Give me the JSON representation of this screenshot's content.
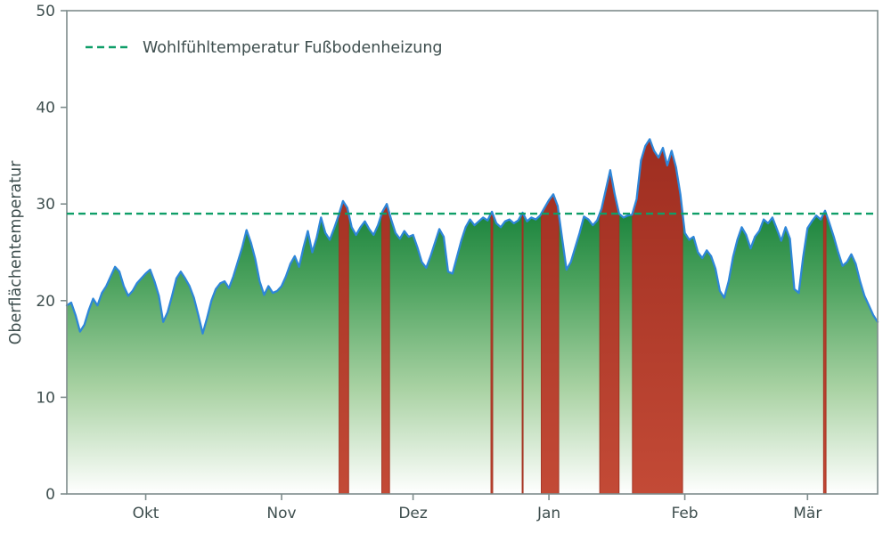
{
  "legend": {
    "label": "Wohlfühltemperatur Fußbodenheizung"
  },
  "axes": {
    "y_label": "Oberflächentemperatur"
  },
  "chart_data": {
    "type": "area",
    "title": "",
    "xlabel": "",
    "ylabel": "Oberflächentemperatur",
    "ylim": [
      0,
      50
    ],
    "grid": false,
    "legend_position": "upper-left",
    "threshold": {
      "label": "Wohlfühltemperatur Fußbodenheizung",
      "value": 29
    },
    "y_ticks": [
      0,
      10,
      20,
      30,
      40,
      50
    ],
    "x_tick_labels": [
      "Okt",
      "Nov",
      "Dez",
      "Jan",
      "Feb",
      "Mär"
    ],
    "x_tick_positions": [
      18,
      49,
      79,
      110,
      141,
      169
    ],
    "series": [
      {
        "name": "Oberflächentemperatur",
        "values": [
          19.5,
          19.8,
          18.5,
          16.8,
          17.5,
          19.0,
          20.2,
          19.5,
          20.8,
          21.5,
          22.5,
          23.5,
          23.0,
          21.5,
          20.5,
          21.0,
          21.8,
          22.3,
          22.8,
          23.2,
          22.0,
          20.5,
          17.8,
          18.8,
          20.5,
          22.3,
          23.0,
          22.3,
          21.5,
          20.3,
          18.5,
          16.6,
          18.2,
          20.0,
          21.2,
          21.8,
          22.0,
          21.3,
          22.5,
          24.0,
          25.5,
          27.3,
          26.0,
          24.3,
          22.0,
          20.6,
          21.5,
          20.8,
          21.0,
          21.5,
          22.5,
          23.8,
          24.6,
          23.5,
          25.5,
          27.2,
          25.0,
          26.5,
          28.6,
          27.0,
          26.3,
          27.5,
          28.8,
          30.3,
          29.6,
          27.6,
          26.8,
          27.6,
          28.2,
          27.4,
          26.8,
          27.8,
          29.2,
          30.0,
          28.4,
          27.0,
          26.4,
          27.2,
          26.6,
          26.8,
          25.5,
          24.0,
          23.4,
          24.6,
          26.0,
          27.4,
          26.6,
          23.0,
          22.8,
          24.5,
          26.2,
          27.6,
          28.4,
          27.8,
          28.2,
          28.6,
          28.3,
          29.2,
          28.0,
          27.6,
          28.2,
          28.4,
          28.0,
          28.3,
          29.1,
          28.2,
          28.6,
          28.4,
          28.8,
          29.6,
          30.4,
          31.0,
          29.8,
          26.5,
          23.2,
          24.0,
          25.5,
          27.0,
          28.7,
          28.4,
          27.8,
          28.3,
          29.5,
          31.5,
          33.5,
          31.0,
          29.0,
          28.6,
          28.8,
          28.9,
          30.5,
          34.5,
          36.0,
          36.7,
          35.5,
          34.8,
          35.8,
          34.0,
          35.5,
          33.8,
          31.0,
          27.0,
          26.3,
          26.6,
          25.0,
          24.4,
          25.2,
          24.6,
          23.3,
          21.0,
          20.3,
          22.0,
          24.5,
          26.3,
          27.6,
          26.8,
          25.4,
          26.6,
          27.2,
          28.4,
          28.0,
          28.6,
          27.4,
          26.2,
          27.6,
          26.4,
          21.2,
          20.8,
          24.5,
          27.5,
          28.2,
          28.8,
          28.4,
          29.3,
          28.0,
          26.6,
          25.0,
          23.6,
          24.0,
          24.8,
          23.8,
          22.0,
          20.5,
          19.5,
          18.5,
          17.8
        ]
      }
    ],
    "colors": {
      "threshold": "#0f9e68",
      "line": "#2e86d8",
      "fill_top": "#0e7c34",
      "fill_bottom": "#ffffff",
      "over_red": "#a1301f",
      "frame": "#7e8c8c",
      "text": "#3e4e4e"
    }
  }
}
